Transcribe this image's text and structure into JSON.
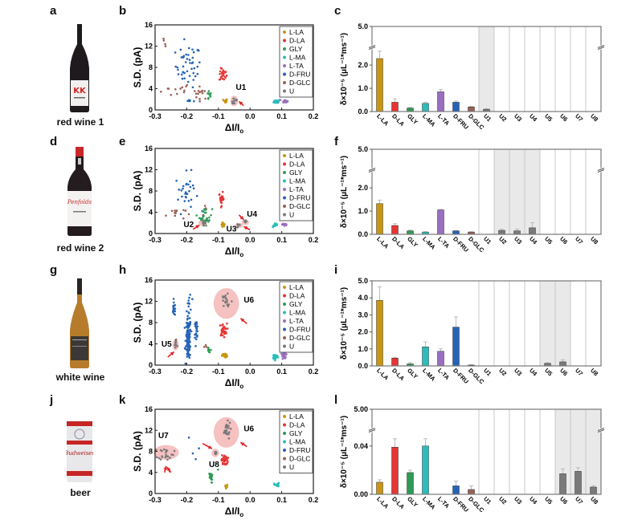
{
  "panels": {
    "letters": [
      "a",
      "b",
      "c",
      "d",
      "e",
      "f",
      "g",
      "h",
      "i",
      "j",
      "k",
      "l"
    ],
    "beverages": [
      "red wine 1",
      "red wine 2",
      "white wine",
      "beer"
    ]
  },
  "colors": {
    "L-LA": "#c8960f",
    "D-LA": "#e63535",
    "GLY": "#2f9a55",
    "L-MA": "#2bbcbc",
    "L-TA": "#9a6fbf",
    "D-FRU": "#2563b8",
    "D-GLC": "#9a6057",
    "U": "#7a7a7a",
    "highlight": "#f4b6b6",
    "arrow": "#e0201e",
    "shade": "#e9e9e9"
  },
  "chart_data": [
    {
      "id": "b",
      "type": "scatter",
      "xlabel": "ΔI/Io",
      "ylabel": "S.D. (pA)",
      "xlim": [
        -0.3,
        0.2
      ],
      "ylim": [
        0,
        16
      ],
      "xticks": [
        "-0.3",
        "-0.2",
        "-0.1",
        "0.0",
        "0.1",
        "0.2"
      ],
      "yticks": [
        "0",
        "4",
        "8",
        "12",
        "16"
      ],
      "legend": [
        "L-LA",
        "D-LA",
        "GLY",
        "L-MA",
        "L-TA",
        "D-FRU",
        "D-GLC",
        "U"
      ],
      "legend_position": "top-right",
      "clusters": [
        {
          "series": "D-GLC",
          "cx": -0.27,
          "cy": 12.3,
          "sx": 0.008,
          "sy": 0.8,
          "n": 4
        },
        {
          "series": "D-GLC",
          "cx": -0.23,
          "cy": 3.8,
          "sx": 0.025,
          "sy": 0.7,
          "n": 12
        },
        {
          "series": "D-GLC",
          "cx": -0.155,
          "cy": 3.2,
          "sx": 0.012,
          "sy": 0.6,
          "n": 14
        },
        {
          "series": "D-FRU",
          "cx": -0.195,
          "cy": 8.3,
          "sx": 0.02,
          "sy": 2.0,
          "n": 45
        },
        {
          "series": "D-FRU",
          "cx": -0.19,
          "cy": 1.7,
          "sx": 0.006,
          "sy": 0.1,
          "n": 6
        },
        {
          "series": "GLY",
          "cx": -0.13,
          "cy": 2.7,
          "sx": 0.004,
          "sy": 0.5,
          "n": 10
        },
        {
          "series": "D-LA",
          "cx": -0.085,
          "cy": 6.6,
          "sx": 0.006,
          "sy": 0.6,
          "n": 25
        },
        {
          "series": "L-LA",
          "cx": -0.078,
          "cy": 1.7,
          "sx": 0.003,
          "sy": 0.2,
          "n": 20
        },
        {
          "series": "U",
          "cx": -0.05,
          "cy": 1.7,
          "sx": 0.006,
          "sy": 0.4,
          "n": 12
        },
        {
          "series": "L-MA",
          "cx": 0.085,
          "cy": 1.6,
          "sx": 0.005,
          "sy": 0.2,
          "n": 20
        },
        {
          "series": "L-TA",
          "cx": 0.11,
          "cy": 1.7,
          "sx": 0.004,
          "sy": 0.15,
          "n": 20
        }
      ],
      "highlights": [
        {
          "label": "U1",
          "cx": -0.05,
          "cy": 1.7,
          "rx": 0.012,
          "ry": 1.0
        }
      ],
      "annotations": [
        {
          "text": "U1",
          "x": -0.045,
          "y": 3.8
        }
      ],
      "arrows": [
        {
          "from": [
            -0.02,
            0.8
          ],
          "to": [
            -0.035,
            1.6
          ]
        }
      ]
    },
    {
      "id": "e",
      "type": "scatter",
      "xlabel": "ΔI/Io",
      "ylabel": "S.D. (pA)",
      "xlim": [
        -0.3,
        0.2
      ],
      "ylim": [
        0,
        16
      ],
      "xticks": [
        "-0.3",
        "-0.2",
        "-0.1",
        "0.0",
        "0.1",
        "0.2"
      ],
      "yticks": [
        "0",
        "4",
        "8",
        "12",
        "16"
      ],
      "legend": [
        "L-LA",
        "D-LA",
        "GLY",
        "L-MA",
        "L-TA",
        "D-FRU",
        "D-GLC",
        "U"
      ],
      "legend_position": "top-right",
      "clusters": [
        {
          "series": "D-FRU",
          "cx": -0.2,
          "cy": 7.8,
          "sx": 0.018,
          "sy": 1.8,
          "n": 30
        },
        {
          "series": "D-GLC",
          "cx": -0.235,
          "cy": 3.8,
          "sx": 0.015,
          "sy": 0.6,
          "n": 12
        },
        {
          "series": "GLY",
          "cx": -0.14,
          "cy": 3.2,
          "sx": 0.01,
          "sy": 0.8,
          "n": 30
        },
        {
          "series": "D-GLC",
          "cx": -0.145,
          "cy": 4.5,
          "sx": 0.003,
          "sy": 0.3,
          "n": 3
        },
        {
          "series": "D-LA",
          "cx": -0.09,
          "cy": 6.5,
          "sx": 0.004,
          "sy": 0.6,
          "n": 25
        },
        {
          "series": "L-LA",
          "cx": -0.085,
          "cy": 1.7,
          "sx": 0.003,
          "sy": 0.2,
          "n": 20
        },
        {
          "series": "U",
          "cx": -0.15,
          "cy": 2.0,
          "sx": 0.005,
          "sy": 0.2,
          "n": 8
        },
        {
          "series": "U",
          "cx": -0.035,
          "cy": 1.5,
          "sx": 0.004,
          "sy": 0.2,
          "n": 6
        },
        {
          "series": "U",
          "cx": -0.015,
          "cy": 2.1,
          "sx": 0.005,
          "sy": 0.2,
          "n": 6
        },
        {
          "series": "L-MA",
          "cx": 0.08,
          "cy": 1.6,
          "sx": 0.004,
          "sy": 0.2,
          "n": 15
        },
        {
          "series": "L-TA",
          "cx": 0.11,
          "cy": 1.7,
          "sx": 0.004,
          "sy": 0.2,
          "n": 20
        }
      ],
      "highlights": [
        {
          "label": "U2",
          "cx": -0.15,
          "cy": 2.0,
          "rx": 0.013,
          "ry": 0.6
        },
        {
          "label": "U3",
          "cx": -0.035,
          "cy": 1.5,
          "rx": 0.012,
          "ry": 0.5
        },
        {
          "label": "U4",
          "cx": -0.015,
          "cy": 2.1,
          "rx": 0.012,
          "ry": 0.5
        }
      ],
      "annotations": [
        {
          "text": "U2",
          "x": -0.21,
          "y": 1.2
        },
        {
          "text": "U3",
          "x": -0.075,
          "y": 0.4
        },
        {
          "text": "U4",
          "x": -0.01,
          "y": 3.2
        }
      ],
      "arrows": [
        {
          "from": [
            -0.18,
            0.8
          ],
          "to": [
            -0.16,
            1.6
          ]
        },
        {
          "from": [
            -0.035,
            3.5
          ],
          "to": [
            -0.02,
            2.6
          ]
        },
        {
          "from": [
            -0.0,
            0.7
          ],
          "to": [
            -0.02,
            1.3
          ]
        }
      ]
    },
    {
      "id": "h",
      "type": "scatter",
      "xlabel": "ΔI/Io",
      "ylabel": "S.D. (pA)",
      "xlim": [
        -0.3,
        0.2
      ],
      "ylim": [
        0,
        16
      ],
      "xticks": [
        "-0.3",
        "-0.2",
        "-0.1",
        "0.0",
        "0.1",
        "0.2"
      ],
      "yticks": [
        "0",
        "4",
        "8",
        "12",
        "16"
      ],
      "legend": [
        "L-LA",
        "D-LA",
        "GLY",
        "L-MA",
        "L-TA",
        "D-FRU",
        "D-GLC",
        "U"
      ],
      "legend_position": "top-right",
      "clusters": [
        {
          "series": "D-FRU",
          "cx": -0.24,
          "cy": 10.5,
          "sx": 0.003,
          "sy": 0.6,
          "n": 18
        },
        {
          "series": "D-FRU",
          "cx": -0.195,
          "cy": 5.0,
          "sx": 0.004,
          "sy": 2.0,
          "n": 110
        },
        {
          "series": "D-FRU",
          "cx": -0.19,
          "cy": 12.0,
          "sx": 0.006,
          "sy": 0.9,
          "n": 10
        },
        {
          "series": "D-FRU",
          "cx": -0.17,
          "cy": 6.8,
          "sx": 0.003,
          "sy": 0.8,
          "n": 25
        },
        {
          "series": "D-GLC",
          "cx": -0.235,
          "cy": 4.8,
          "sx": 0.002,
          "sy": 0.3,
          "n": 2
        },
        {
          "series": "D-GLC",
          "cx": -0.138,
          "cy": 3.4,
          "sx": 0.003,
          "sy": 0.4,
          "n": 4
        },
        {
          "series": "GLY",
          "cx": -0.13,
          "cy": 2.6,
          "sx": 0.002,
          "sy": 0.3,
          "n": 8
        },
        {
          "series": "D-LA",
          "cx": -0.085,
          "cy": 6.6,
          "sx": 0.006,
          "sy": 0.6,
          "n": 35
        },
        {
          "series": "L-LA",
          "cx": -0.08,
          "cy": 1.8,
          "sx": 0.004,
          "sy": 0.2,
          "n": 30
        },
        {
          "series": "U",
          "cx": -0.235,
          "cy": 3.8,
          "sx": 0.003,
          "sy": 0.5,
          "n": 10
        },
        {
          "series": "U",
          "cx": -0.075,
          "cy": 12.0,
          "sx": 0.01,
          "sy": 1.1,
          "n": 18
        },
        {
          "series": "L-MA",
          "cx": 0.08,
          "cy": 1.6,
          "sx": 0.004,
          "sy": 0.25,
          "n": 40
        },
        {
          "series": "L-TA",
          "cx": 0.108,
          "cy": 2.0,
          "sx": 0.003,
          "sy": 0.5,
          "n": 35
        }
      ],
      "highlights": [
        {
          "label": "U5",
          "cx": -0.235,
          "cy": 3.8,
          "rx": 0.01,
          "ry": 1.0
        },
        {
          "label": "U6",
          "cx": -0.075,
          "cy": 11.6,
          "rx": 0.04,
          "ry": 2.9
        }
      ],
      "annotations": [
        {
          "text": "U5",
          "x": -0.28,
          "y": 3.5
        },
        {
          "text": "U6",
          "x": -0.02,
          "y": 11.8
        }
      ],
      "arrows": [
        {
          "from": [
            -0.26,
            1.5
          ],
          "to": [
            -0.24,
            2.5
          ]
        },
        {
          "from": [
            -0.01,
            7.8
          ],
          "to": [
            -0.03,
            8.8
          ]
        }
      ]
    },
    {
      "id": "k",
      "type": "scatter",
      "xlabel": "ΔI/Io",
      "ylabel": "S.D. (pA)",
      "xlim": [
        -0.3,
        0.2
      ],
      "ylim": [
        0,
        16
      ],
      "xticks": [
        "-0.3",
        "-0.2",
        "-0.1",
        "0.0",
        "0.1",
        "0.2"
      ],
      "yticks": [
        "0",
        "4",
        "8",
        "12",
        "16"
      ],
      "legend": [
        "L-LA",
        "D-LA",
        "GLY",
        "L-MA",
        "D-FRU",
        "D-GLC",
        "U"
      ],
      "legend_position": "top-right",
      "clusters": [
        {
          "series": "U",
          "cx": -0.265,
          "cy": 7.6,
          "sx": 0.012,
          "sy": 0.6,
          "n": 25
        },
        {
          "series": "U",
          "cx": -0.11,
          "cy": 7.7,
          "sx": 0.003,
          "sy": 0.2,
          "n": 6
        },
        {
          "series": "U",
          "cx": -0.075,
          "cy": 12.0,
          "sx": 0.007,
          "sy": 0.8,
          "n": 25
        },
        {
          "series": "D-FRU",
          "cx": -0.185,
          "cy": 8.0,
          "sx": 0.01,
          "sy": 1.5,
          "n": 4
        },
        {
          "series": "D-GLC",
          "cx": -0.255,
          "cy": 4.2,
          "sx": 0.001,
          "sy": 0.1,
          "n": 1
        },
        {
          "series": "GLY",
          "cx": -0.125,
          "cy": 3.0,
          "sx": 0.003,
          "sy": 0.5,
          "n": 18
        },
        {
          "series": "GLY",
          "cx": -0.102,
          "cy": 4.6,
          "sx": 0.001,
          "sy": 0.1,
          "n": 1
        },
        {
          "series": "D-LA",
          "cx": -0.08,
          "cy": 6.3,
          "sx": 0.005,
          "sy": 0.5,
          "n": 35
        },
        {
          "series": "L-LA",
          "cx": -0.075,
          "cy": 1.4,
          "sx": 0.002,
          "sy": 0.2,
          "n": 8
        },
        {
          "series": "L-MA",
          "cx": 0.085,
          "cy": 1.6,
          "sx": 0.004,
          "sy": 0.2,
          "n": 20
        }
      ],
      "highlights": [
        {
          "label": "U7",
          "cx": -0.265,
          "cy": 7.8,
          "rx": 0.04,
          "ry": 1.4
        },
        {
          "label": "U8",
          "cx": -0.11,
          "cy": 7.7,
          "rx": 0.012,
          "ry": 0.8
        },
        {
          "label": "U6",
          "cx": -0.075,
          "cy": 11.6,
          "rx": 0.04,
          "ry": 2.9
        }
      ],
      "annotations": [
        {
          "text": "U7",
          "x": -0.29,
          "y": 10.5
        },
        {
          "text": "U8",
          "x": -0.13,
          "y": 5.0
        },
        {
          "text": "U6",
          "x": -0.02,
          "y": 11.8
        }
      ],
      "arrows": [
        {
          "from": [
            -0.27,
            4.0
          ],
          "to": [
            -0.265,
            5.2
          ]
        },
        {
          "from": [
            -0.15,
            9.5
          ],
          "to": [
            -0.12,
            8.5
          ]
        },
        {
          "from": [
            -0.01,
            8.9
          ],
          "to": [
            -0.03,
            9.7
          ]
        },
        {
          "from": [
            -0.25,
            4.0
          ],
          "to": [
            -0.262,
            5.0
          ]
        }
      ]
    },
    {
      "id": "c",
      "type": "bar",
      "ylabel": "δ×10⁻⁵ (μL⁻¹*ms⁻¹)",
      "categories": [
        "L-LA",
        "D-LA",
        "GLY",
        "L-MA",
        "L-TA",
        "D-FRU",
        "D-GLC",
        "U1",
        "U2",
        "U3",
        "U4",
        "U5",
        "U6",
        "U7",
        "U8"
      ],
      "values": [
        2.28,
        0.4,
        0.15,
        0.35,
        0.85,
        0.4,
        0.2,
        0.1,
        0,
        0,
        0,
        0,
        0,
        0,
        0
      ],
      "errors": [
        0.35,
        0.15,
        0.02,
        0.05,
        0.1,
        0.05,
        0.02,
        0.02,
        0,
        0,
        0,
        0,
        0,
        0,
        0
      ],
      "ylim": [
        0,
        5.0
      ],
      "axis_break": true,
      "yticks": [
        "0.0",
        "1.0",
        "2.0",
        "5.0"
      ],
      "shaded": [
        "U1"
      ]
    },
    {
      "id": "f",
      "type": "bar",
      "ylabel": "δ×10⁻⁵ (μL⁻¹*ms⁻¹)",
      "categories": [
        "L-LA",
        "D-LA",
        "GLY",
        "L-MA",
        "L-TA",
        "D-FRU",
        "D-GLC",
        "U1",
        "U2",
        "U3",
        "U4",
        "U5",
        "U6",
        "U7",
        "U8"
      ],
      "values": [
        1.32,
        0.38,
        0.15,
        0.1,
        1.05,
        0.15,
        0.1,
        0,
        0.17,
        0.15,
        0.28,
        0,
        0,
        0,
        0
      ],
      "errors": [
        0.15,
        0.08,
        0.03,
        0.01,
        0.02,
        0.01,
        0.01,
        0,
        0.05,
        0.08,
        0.22,
        0,
        0,
        0,
        0
      ],
      "ylim": [
        0,
        5.0
      ],
      "axis_break": true,
      "yticks": [
        "0.0",
        "1.0",
        "2.0",
        "5.0"
      ],
      "shaded": [
        "U2",
        "U3",
        "U4"
      ]
    },
    {
      "id": "i",
      "type": "bar",
      "ylabel": "δ×10⁻⁵ (μL⁻¹*ms⁻¹)",
      "categories": [
        "L-LA",
        "D-LA",
        "GLY",
        "L-MA",
        "L-TA",
        "D-FRU",
        "D-GLC",
        "U1",
        "U2",
        "U3",
        "U4",
        "U5",
        "U6",
        "U7",
        "U8"
      ],
      "values": [
        3.85,
        0.46,
        0.12,
        1.12,
        0.86,
        2.28,
        0.05,
        0,
        0,
        0,
        0,
        0.15,
        0.24,
        0,
        0
      ],
      "errors": [
        0.8,
        0.05,
        0.08,
        0.3,
        0.15,
        0.6,
        0.02,
        0,
        0,
        0,
        0,
        0.03,
        0.12,
        0,
        0
      ],
      "ylim": [
        0,
        5.0
      ],
      "axis_break": false,
      "yticks": [
        "0.0",
        "1.0",
        "2.0",
        "3.0",
        "4.0",
        "5.0"
      ],
      "shaded": [
        "U5",
        "U6"
      ]
    },
    {
      "id": "l",
      "type": "bar",
      "ylabel": "δ×10⁻⁵ (μL⁻¹*ms⁻¹)",
      "categories": [
        "L-LA",
        "D-LA",
        "GLY",
        "L-MA",
        "L-TA",
        "D-FRU",
        "D-GLC",
        "U1",
        "U2",
        "U3",
        "U4",
        "U5",
        "U6",
        "U7",
        "U8"
      ],
      "values": [
        0.01,
        0.039,
        0.018,
        0.04,
        0,
        0.007,
        0.004,
        0,
        0,
        0,
        0,
        0,
        0.017,
        0.019,
        0.006
      ],
      "errors": [
        0.002,
        0.007,
        0.002,
        0.006,
        0,
        0.004,
        0.003,
        0,
        0,
        0,
        0,
        0,
        0.004,
        0.003,
        0.001
      ],
      "ylim": [
        0,
        5.0
      ],
      "axis_break": true,
      "yticks": [
        "0.00",
        "0.04",
        "5.00"
      ],
      "shaded": [
        "U6",
        "U7",
        "U8"
      ]
    }
  ]
}
